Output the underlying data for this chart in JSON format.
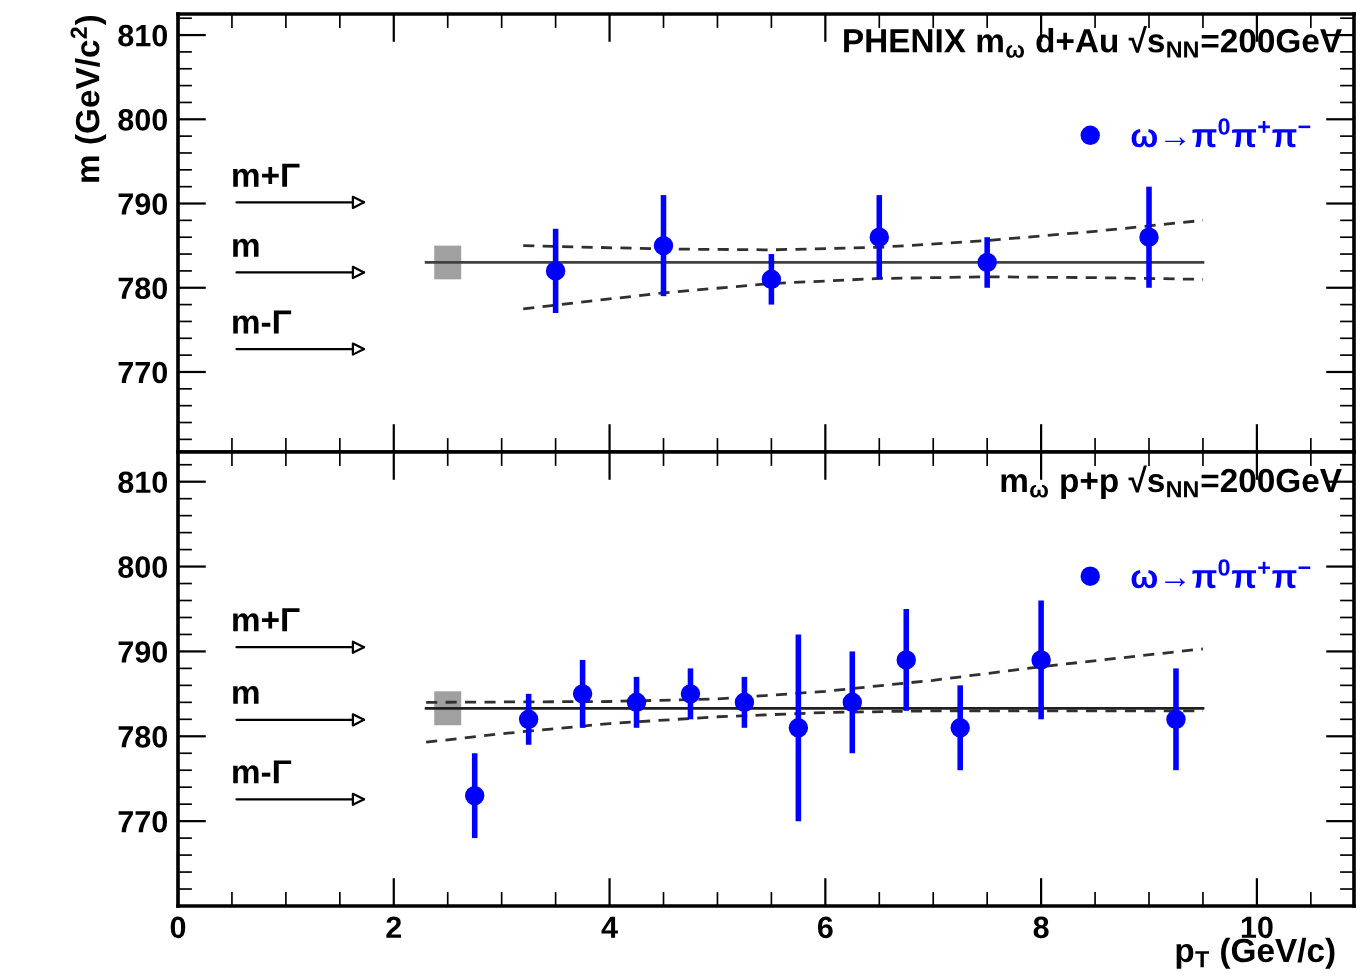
{
  "chart_data": [
    {
      "type": "scatter",
      "title": "PHENIX m$_{ω}$ d+Au √s$_{NN}$=200GeV",
      "ylabel": "m (GeV/c$^{2}$)",
      "xlim": [
        0,
        10.9
      ],
      "ylim": [
        760.5,
        812.5
      ],
      "xticks": [
        0,
        2,
        4,
        6,
        8,
        10
      ],
      "yticks": [
        770,
        780,
        790,
        800,
        810
      ],
      "tick_labels": "y",
      "legend": "top right",
      "grid": false,
      "annotations": [
        "m+Γ",
        "m",
        "m-Γ"
      ],
      "series": [
        {
          "type": "bar",
          "x": [
            2.5
          ],
          "base": [
            781
          ],
          "values": [
            4
          ],
          "color": "#a0a0a0"
        },
        {
          "type": "line",
          "x": [
            2.3,
            9.5
          ],
          "values": [
            783,
            783
          ],
          "color": "#404040",
          "line_style": "solid"
        },
        {
          "type": "line",
          "x": [
            3.2,
            4.5,
            5.5,
            6.5,
            7.5,
            8.5,
            9.5
          ],
          "values": [
            785,
            784.6,
            784.5,
            784.8,
            785.6,
            786.7,
            788
          ],
          "color": "#303030",
          "line_style": "dashed"
        },
        {
          "type": "line",
          "x": [
            3.2,
            4.5,
            5.5,
            6.5,
            7.5,
            8.5,
            9.5
          ],
          "values": [
            777.5,
            779.4,
            780.5,
            781.1,
            781.3,
            781.2,
            781
          ],
          "color": "#303030",
          "line_style": "dashed"
        },
        {
          "name": "ω→π$^{0}$π$^{+}$π$^{−}$",
          "marker": "circle",
          "x": [
            3.5,
            4.5,
            5.5,
            6.5,
            7.5,
            9.0
          ],
          "values": [
            782,
            785,
            781,
            786,
            783,
            786
          ],
          "errors": [
            5,
            6,
            3,
            5,
            3,
            6
          ],
          "color": "#0000ff"
        }
      ]
    },
    {
      "type": "scatter",
      "title": "m$_{ω}$ p+p √s$_{NN}$=200GeV",
      "xlabel": "p$_{T}$ (GeV/c)",
      "xlim": [
        0,
        10.9
      ],
      "ylim": [
        760,
        813.5
      ],
      "xticks": [
        0,
        2,
        4,
        6,
        8,
        10
      ],
      "yticks": [
        770,
        780,
        790,
        800,
        810
      ],
      "legend": "top right",
      "grid": false,
      "annotations": [
        "m+Γ",
        "m",
        "m-Γ"
      ],
      "series": [
        {
          "type": "bar",
          "x": [
            2.5
          ],
          "base": [
            781.3
          ],
          "values": [
            4
          ],
          "color": "#a0a0a0"
        },
        {
          "type": "line",
          "x": [
            2.3,
            9.5
          ],
          "values": [
            783.3,
            783.3
          ],
          "color": "#202020",
          "line_style": "solid"
        },
        {
          "type": "line",
          "x": [
            2.3,
            4,
            5,
            6,
            7,
            8,
            9.5
          ],
          "values": [
            784,
            784.1,
            784.4,
            785.3,
            786.6,
            788.2,
            790.3
          ],
          "color": "#303030",
          "line_style": "dashed"
        },
        {
          "type": "line",
          "x": [
            2.3,
            3,
            4,
            5,
            6,
            7,
            8,
            9.5
          ],
          "values": [
            779.3,
            780.3,
            781.5,
            782.3,
            782.8,
            783,
            783,
            783
          ],
          "color": "#303030",
          "line_style": "dashed"
        },
        {
          "name": "ω→π$^{0}$π$^{+}$π$^{−}$",
          "marker": "circle",
          "x": [
            2.75,
            3.25,
            3.75,
            4.25,
            4.75,
            5.25,
            5.75,
            6.25,
            6.75,
            7.25,
            8.0,
            9.25
          ],
          "values": [
            773,
            782,
            785,
            784,
            785,
            784,
            781,
            784,
            789,
            781,
            789,
            782
          ],
          "errors": [
            5,
            3,
            4,
            3,
            3,
            3,
            11,
            6,
            6,
            5,
            7,
            6
          ],
          "color": "#0000ff"
        }
      ]
    }
  ]
}
